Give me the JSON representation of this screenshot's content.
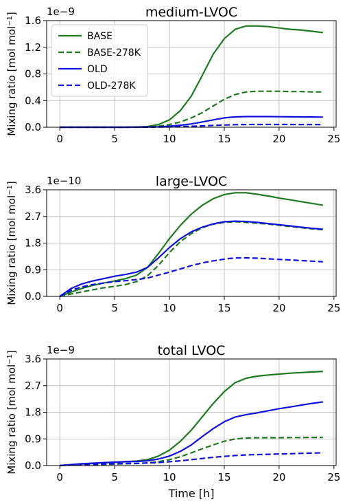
{
  "figure": {
    "xlabel": "Time [h]"
  },
  "legend": {
    "entries": [
      {
        "label": "BASE",
        "color": "#1f7a1f",
        "style": "solid"
      },
      {
        "label": "BASE-278K",
        "color": "#1f7a1f",
        "style": "dashed"
      },
      {
        "label": "OLD",
        "color": "#1010dd",
        "style": "solid"
      },
      {
        "label": "OLD-278K",
        "color": "#1010dd",
        "style": "dashed"
      }
    ]
  },
  "chart_data": [
    {
      "type": "line",
      "title": "medium-LVOC",
      "ylabel": "Mixing ratio [mol mol",
      "ylabel_sup": "−1",
      "ylabel_end": "]",
      "offset_label": "1e−9",
      "xlim": [
        -1.2,
        25.2
      ],
      "ylim": [
        0,
        1.6
      ],
      "xticks": [
        0,
        5,
        10,
        15,
        20,
        25
      ],
      "yticks": [
        0.0,
        0.4,
        0.8,
        1.2,
        1.6
      ],
      "ytick_labels": [
        "0.0",
        "0.4",
        "0.8",
        "1.2",
        "1.6"
      ],
      "grid": true,
      "legend_placement": "upper-left",
      "x": [
        0,
        2,
        4,
        6,
        7,
        8,
        9,
        10,
        11,
        12,
        13,
        14,
        15,
        16,
        17,
        18,
        19,
        20,
        21,
        22,
        23,
        24
      ],
      "series": [
        {
          "name": "BASE",
          "values": [
            0,
            0,
            0,
            0,
            0.003,
            0.01,
            0.04,
            0.11,
            0.25,
            0.47,
            0.78,
            1.1,
            1.33,
            1.47,
            1.52,
            1.52,
            1.51,
            1.49,
            1.47,
            1.46,
            1.44,
            1.42
          ]
        },
        {
          "name": "BASE-278K",
          "values": [
            0,
            0,
            0,
            0,
            0.001,
            0.004,
            0.015,
            0.04,
            0.08,
            0.14,
            0.22,
            0.32,
            0.42,
            0.49,
            0.53,
            0.54,
            0.54,
            0.54,
            0.535,
            0.535,
            0.53,
            0.53
          ]
        },
        {
          "name": "OLD",
          "values": [
            0,
            0,
            0,
            0,
            0.001,
            0.003,
            0.006,
            0.015,
            0.03,
            0.05,
            0.08,
            0.11,
            0.14,
            0.155,
            0.16,
            0.16,
            0.16,
            0.158,
            0.156,
            0.155,
            0.154,
            0.152
          ]
        },
        {
          "name": "OLD-278K",
          "values": [
            0,
            0,
            0,
            0,
            0,
            0.001,
            0.002,
            0.005,
            0.009,
            0.014,
            0.02,
            0.027,
            0.033,
            0.038,
            0.04,
            0.041,
            0.041,
            0.041,
            0.041,
            0.04,
            0.04,
            0.04
          ]
        }
      ]
    },
    {
      "type": "line",
      "title": "large-LVOC",
      "ylabel": "Mixing ratio [mol mol",
      "ylabel_sup": "−1",
      "ylabel_end": "]",
      "offset_label": "1e−10",
      "xlim": [
        -1.2,
        25.2
      ],
      "ylim": [
        0,
        3.6
      ],
      "xticks": [
        0,
        5,
        10,
        15,
        20,
        25
      ],
      "yticks": [
        0.0,
        0.9,
        1.8,
        2.7,
        3.6
      ],
      "ytick_labels": [
        "0.0",
        "0.9",
        "1.8",
        "2.7",
        "3.6"
      ],
      "grid": true,
      "x": [
        0,
        1,
        2,
        3,
        4,
        5,
        6,
        7,
        8,
        9,
        10,
        11,
        12,
        13,
        14,
        15,
        16,
        17,
        18,
        19,
        20,
        21,
        22,
        23,
        24
      ],
      "series": [
        {
          "name": "BASE",
          "values": [
            0,
            0.14,
            0.27,
            0.37,
            0.45,
            0.52,
            0.6,
            0.72,
            0.98,
            1.45,
            1.95,
            2.4,
            2.78,
            3.08,
            3.3,
            3.44,
            3.5,
            3.5,
            3.45,
            3.39,
            3.32,
            3.26,
            3.2,
            3.14,
            3.08
          ]
        },
        {
          "name": "BASE-278K",
          "values": [
            0,
            0.08,
            0.15,
            0.22,
            0.29,
            0.34,
            0.4,
            0.5,
            0.7,
            1.05,
            1.48,
            1.85,
            2.12,
            2.32,
            2.44,
            2.5,
            2.52,
            2.5,
            2.47,
            2.44,
            2.4,
            2.36,
            2.32,
            2.28,
            2.25
          ]
        },
        {
          "name": "OLD",
          "values": [
            0,
            0.26,
            0.42,
            0.52,
            0.6,
            0.68,
            0.74,
            0.82,
            0.98,
            1.3,
            1.65,
            1.95,
            2.18,
            2.34,
            2.45,
            2.52,
            2.54,
            2.53,
            2.5,
            2.46,
            2.42,
            2.38,
            2.34,
            2.3,
            2.27
          ]
        },
        {
          "name": "OLD-278K",
          "values": [
            0,
            0.2,
            0.32,
            0.4,
            0.45,
            0.5,
            0.53,
            0.57,
            0.62,
            0.72,
            0.82,
            0.93,
            1.04,
            1.13,
            1.2,
            1.26,
            1.3,
            1.3,
            1.29,
            1.27,
            1.25,
            1.23,
            1.21,
            1.19,
            1.17
          ]
        }
      ]
    },
    {
      "type": "line",
      "title": "total LVOC",
      "ylabel": "Mixing ratio [mol mol",
      "ylabel_sup": "−1",
      "ylabel_end": "]",
      "offset_label": "1e−9",
      "xlabel": "Time [h]",
      "xlim": [
        -1.2,
        25.2
      ],
      "ylim": [
        0,
        3.6
      ],
      "xticks": [
        0,
        5,
        10,
        15,
        20,
        25
      ],
      "yticks": [
        0.0,
        0.9,
        1.8,
        2.7,
        3.6
      ],
      "ytick_labels": [
        "0.0",
        "0.9",
        "1.8",
        "2.7",
        "3.6"
      ],
      "grid": true,
      "x": [
        0,
        2,
        4,
        6,
        7,
        8,
        9,
        10,
        11,
        12,
        13,
        14,
        15,
        16,
        17,
        18,
        19,
        20,
        21,
        22,
        23,
        24
      ],
      "series": [
        {
          "name": "BASE",
          "values": [
            0,
            0.05,
            0.09,
            0.13,
            0.15,
            0.2,
            0.32,
            0.52,
            0.82,
            1.2,
            1.65,
            2.1,
            2.5,
            2.8,
            2.95,
            3.02,
            3.06,
            3.09,
            3.12,
            3.14,
            3.16,
            3.18
          ]
        },
        {
          "name": "BASE-278K",
          "values": [
            0,
            0.02,
            0.04,
            0.06,
            0.07,
            0.09,
            0.13,
            0.2,
            0.3,
            0.43,
            0.57,
            0.7,
            0.82,
            0.9,
            0.93,
            0.94,
            0.94,
            0.94,
            0.945,
            0.945,
            0.95,
            0.95
          ]
        },
        {
          "name": "OLD",
          "values": [
            0,
            0.06,
            0.1,
            0.13,
            0.14,
            0.16,
            0.22,
            0.32,
            0.48,
            0.7,
            0.98,
            1.25,
            1.48,
            1.64,
            1.72,
            1.78,
            1.85,
            1.92,
            1.98,
            2.04,
            2.1,
            2.15
          ]
        },
        {
          "name": "OLD-278K",
          "values": [
            0,
            0.03,
            0.05,
            0.07,
            0.075,
            0.085,
            0.1,
            0.13,
            0.16,
            0.2,
            0.24,
            0.28,
            0.31,
            0.34,
            0.36,
            0.37,
            0.38,
            0.39,
            0.4,
            0.41,
            0.42,
            0.43
          ]
        }
      ]
    }
  ]
}
